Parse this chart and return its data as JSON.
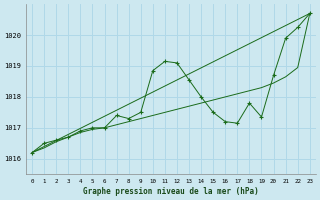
{
  "title": "Graphe pression niveau de la mer (hPa)",
  "bg_color": "#cde8f0",
  "grid_color": "#b0d8e8",
  "line_color": "#1a6b1a",
  "xlim": [
    -0.5,
    23.5
  ],
  "ylim": [
    1015.5,
    1021.0
  ],
  "yticks": [
    1016,
    1017,
    1018,
    1019,
    1020
  ],
  "xticks": [
    0,
    1,
    2,
    3,
    4,
    5,
    6,
    7,
    8,
    9,
    10,
    11,
    12,
    13,
    14,
    15,
    16,
    17,
    18,
    19,
    20,
    21,
    22,
    23
  ],
  "series1_x": [
    0,
    1,
    2,
    3,
    4,
    5,
    6,
    7,
    8,
    9,
    10,
    11,
    12,
    13,
    14,
    15,
    16,
    17,
    18,
    19,
    20,
    21,
    22,
    23
  ],
  "series1_y": [
    1016.2,
    1016.5,
    1016.6,
    1016.7,
    1016.9,
    1017.0,
    1017.0,
    1017.4,
    1017.3,
    1017.5,
    1018.85,
    1019.15,
    1019.1,
    1018.55,
    1018.0,
    1017.5,
    1017.2,
    1017.15,
    1017.8,
    1017.35,
    1018.7,
    1019.9,
    1020.25,
    1020.7
  ],
  "series2_x": [
    0,
    23
  ],
  "series2_y": [
    1016.2,
    1020.7
  ],
  "series3_x": [
    0,
    1,
    2,
    3,
    4,
    5,
    6,
    7,
    8,
    9,
    10,
    11,
    12,
    13,
    14,
    15,
    16,
    17,
    18,
    19,
    20,
    21,
    22,
    23
  ],
  "series3_y": [
    1016.2,
    1016.35,
    1016.55,
    1016.7,
    1016.85,
    1016.95,
    1017.0,
    1017.1,
    1017.2,
    1017.3,
    1017.4,
    1017.5,
    1017.6,
    1017.7,
    1017.8,
    1017.9,
    1018.0,
    1018.1,
    1018.2,
    1018.3,
    1018.45,
    1018.65,
    1018.95,
    1020.7
  ]
}
